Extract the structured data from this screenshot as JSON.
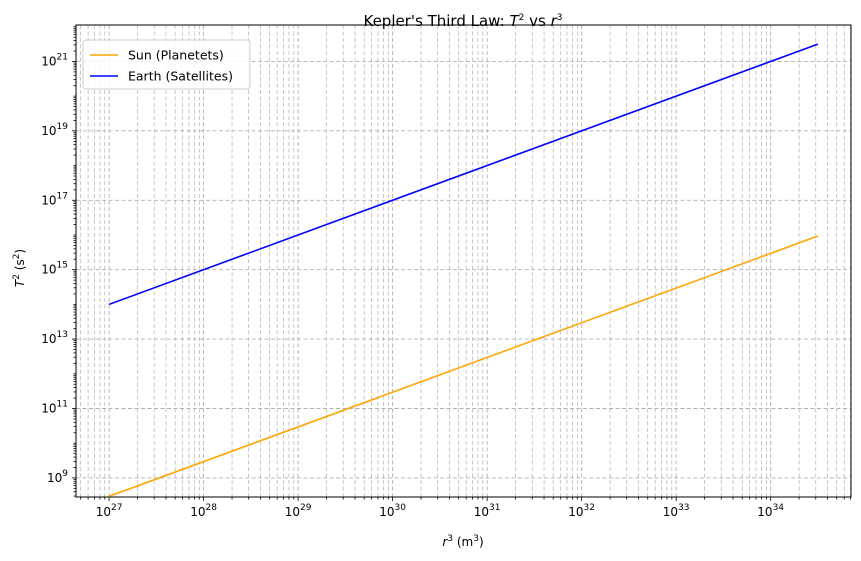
{
  "chart_data": {
    "type": "line",
    "title": {
      "prefix": "Kepler's Third Law: ",
      "t": "T",
      "t_exp": "2",
      "vs": " vs ",
      "r": "r",
      "r_exp": "3"
    },
    "xlabel": {
      "base": "r",
      "base_exp": "3",
      "unit_open": " (m",
      "unit_exp": "3",
      "unit_close": ")"
    },
    "ylabel": {
      "base": "T",
      "base_exp": "2",
      "unit_open": " (s",
      "unit_exp": "2",
      "unit_close": ")"
    },
    "xscale": "log",
    "yscale": "log",
    "xlim_log10": [
      26.65,
      34.85
    ],
    "ylim_log10": [
      8.45,
      22.05
    ],
    "x_ticks": [
      {
        "base": "10",
        "exp": "27",
        "log": 27
      },
      {
        "base": "10",
        "exp": "28",
        "log": 28
      },
      {
        "base": "10",
        "exp": "29",
        "log": 29
      },
      {
        "base": "10",
        "exp": "30",
        "log": 30
      },
      {
        "base": "10",
        "exp": "31",
        "log": 31
      },
      {
        "base": "10",
        "exp": "32",
        "log": 32
      },
      {
        "base": "10",
        "exp": "33",
        "log": 33
      },
      {
        "base": "10",
        "exp": "34",
        "log": 34
      }
    ],
    "y_ticks": [
      {
        "base": "10",
        "exp": "9",
        "log": 9
      },
      {
        "base": "10",
        "exp": "11",
        "log": 11
      },
      {
        "base": "10",
        "exp": "13",
        "log": 13
      },
      {
        "base": "10",
        "exp": "15",
        "log": 15
      },
      {
        "base": "10",
        "exp": "17",
        "log": 17
      },
      {
        "base": "10",
        "exp": "19",
        "log": 19
      },
      {
        "base": "10",
        "exp": "21",
        "log": 21
      }
    ],
    "grid": {
      "on": true,
      "which": "both",
      "style": "dashed",
      "color": "#b0b0b0"
    },
    "legend": {
      "placement": "top-left"
    },
    "series": [
      {
        "name": "Sun (Planetets)",
        "color": "#ffa500",
        "x_log10": [
          27,
          34.5
        ],
        "y_log10": [
          8.47,
          15.97
        ]
      },
      {
        "name": "Earth (Satellites)",
        "color": "#0000ff",
        "x_log10": [
          27,
          34.5
        ],
        "y_log10": [
          14.0,
          21.5
        ]
      }
    ]
  }
}
